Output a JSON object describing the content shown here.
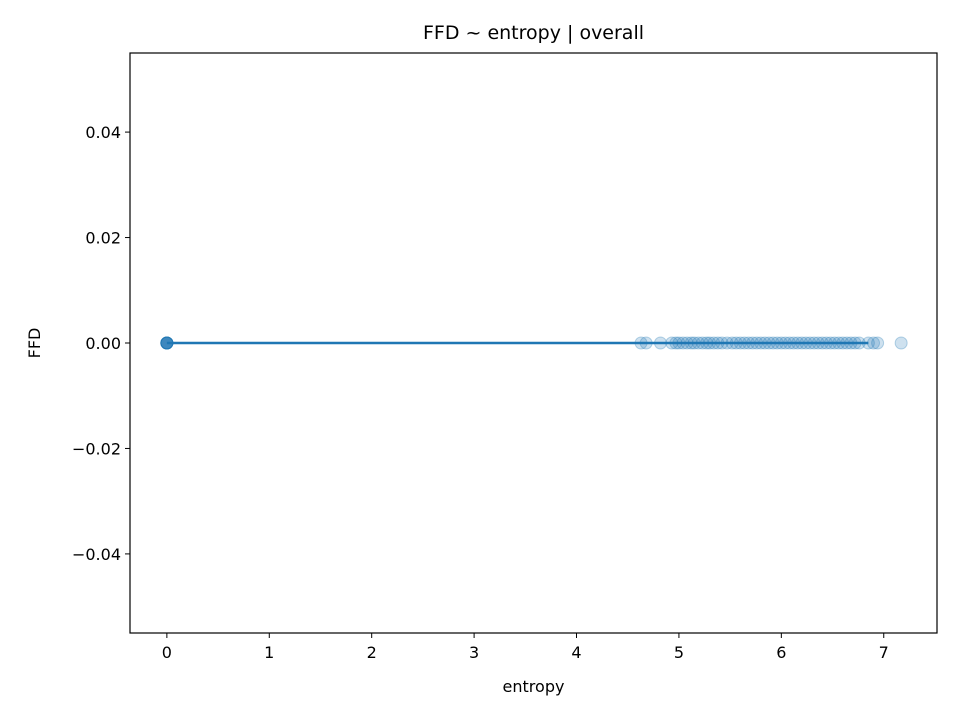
{
  "chart_data": {
    "type": "scatter",
    "title": "FFD ~ entropy | overall",
    "xlabel": "entropy",
    "ylabel": "FFD",
    "xlim": [
      -0.36,
      7.52
    ],
    "ylim": [
      -0.055,
      0.055
    ],
    "xticks": [
      0,
      1,
      2,
      3,
      4,
      5,
      6,
      7
    ],
    "yticks": [
      -0.04,
      -0.02,
      0.0,
      0.02,
      0.04
    ],
    "xtick_labels": [
      "0",
      "1",
      "2",
      "3",
      "4",
      "5",
      "6",
      "7"
    ],
    "ytick_labels": [
      "−0.04",
      "−0.02",
      "0.00",
      "0.02",
      "0.04"
    ],
    "grid": false,
    "legend": "none",
    "colors": {
      "points": "#1f77b4",
      "line": "#1f77b4",
      "frame": "#000000"
    },
    "series": [
      {
        "kind": "scatter",
        "points": [
          {
            "x": 0.0,
            "y": 0.0
          },
          {
            "x": 0.0,
            "y": 0.0
          },
          {
            "x": 0.0,
            "y": 0.0
          },
          {
            "x": 0.0,
            "y": 0.0
          },
          {
            "x": 0.0,
            "y": 0.0
          },
          {
            "x": 0.0,
            "y": 0.0
          },
          {
            "x": 0.0,
            "y": 0.0
          },
          {
            "x": 0.0,
            "y": 0.0
          },
          {
            "x": 4.63,
            "y": 0.0
          },
          {
            "x": 4.68,
            "y": 0.0
          },
          {
            "x": 4.82,
            "y": 0.0
          },
          {
            "x": 4.93,
            "y": 0.0
          },
          {
            "x": 4.97,
            "y": 0.0
          },
          {
            "x": 5.0,
            "y": 0.0
          },
          {
            "x": 5.04,
            "y": 0.0
          },
          {
            "x": 5.08,
            "y": 0.0
          },
          {
            "x": 5.12,
            "y": 0.0
          },
          {
            "x": 5.15,
            "y": 0.0
          },
          {
            "x": 5.19,
            "y": 0.0
          },
          {
            "x": 5.23,
            "y": 0.0
          },
          {
            "x": 5.27,
            "y": 0.0
          },
          {
            "x": 5.3,
            "y": 0.0
          },
          {
            "x": 5.34,
            "y": 0.0
          },
          {
            "x": 5.38,
            "y": 0.0
          },
          {
            "x": 5.42,
            "y": 0.0
          },
          {
            "x": 5.47,
            "y": 0.0
          },
          {
            "x": 5.52,
            "y": 0.0
          },
          {
            "x": 5.56,
            "y": 0.0
          },
          {
            "x": 5.6,
            "y": 0.0
          },
          {
            "x": 5.64,
            "y": 0.0
          },
          {
            "x": 5.68,
            "y": 0.0
          },
          {
            "x": 5.72,
            "y": 0.0
          },
          {
            "x": 5.76,
            "y": 0.0
          },
          {
            "x": 5.8,
            "y": 0.0
          },
          {
            "x": 5.84,
            "y": 0.0
          },
          {
            "x": 5.88,
            "y": 0.0
          },
          {
            "x": 5.92,
            "y": 0.0
          },
          {
            "x": 5.96,
            "y": 0.0
          },
          {
            "x": 6.0,
            "y": 0.0
          },
          {
            "x": 6.04,
            "y": 0.0
          },
          {
            "x": 6.08,
            "y": 0.0
          },
          {
            "x": 6.12,
            "y": 0.0
          },
          {
            "x": 6.16,
            "y": 0.0
          },
          {
            "x": 6.2,
            "y": 0.0
          },
          {
            "x": 6.24,
            "y": 0.0
          },
          {
            "x": 6.28,
            "y": 0.0
          },
          {
            "x": 6.32,
            "y": 0.0
          },
          {
            "x": 6.36,
            "y": 0.0
          },
          {
            "x": 6.4,
            "y": 0.0
          },
          {
            "x": 6.44,
            "y": 0.0
          },
          {
            "x": 6.48,
            "y": 0.0
          },
          {
            "x": 6.52,
            "y": 0.0
          },
          {
            "x": 6.56,
            "y": 0.0
          },
          {
            "x": 6.6,
            "y": 0.0
          },
          {
            "x": 6.64,
            "y": 0.0
          },
          {
            "x": 6.68,
            "y": 0.0
          },
          {
            "x": 6.72,
            "y": 0.0
          },
          {
            "x": 6.76,
            "y": 0.0
          },
          {
            "x": 6.85,
            "y": 0.0
          },
          {
            "x": 6.9,
            "y": 0.0
          },
          {
            "x": 6.94,
            "y": 0.0
          },
          {
            "x": 7.17,
            "y": 0.0
          }
        ]
      },
      {
        "kind": "line",
        "x": [
          0,
          6.85
        ],
        "y": [
          0.0,
          0.0
        ]
      }
    ]
  }
}
